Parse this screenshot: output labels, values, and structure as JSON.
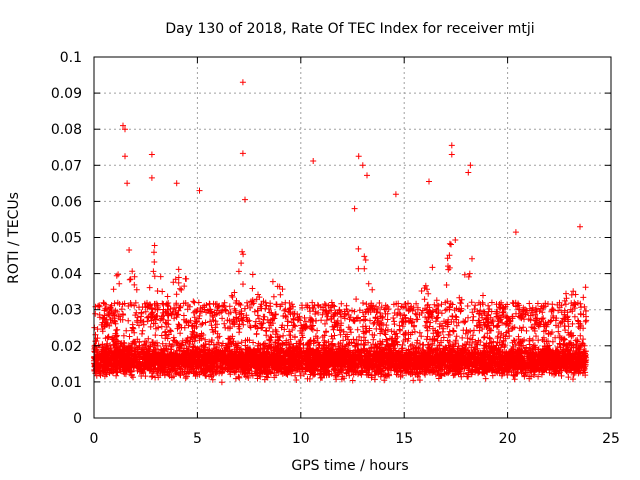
{
  "chart_data": {
    "type": "scatter",
    "title": "Day 130 of 2018, Rate Of TEC Index for receiver mtji",
    "xlabel": "GPS time / hours",
    "ylabel": "ROTI / TECUs",
    "xlim": [
      0,
      25
    ],
    "ylim": [
      0,
      0.1
    ],
    "xticks": [
      0,
      5,
      10,
      15,
      20,
      25
    ],
    "xtick_labels": [
      "0",
      "5",
      "10",
      "15",
      "20",
      "25"
    ],
    "yticks": [
      0,
      0.01,
      0.02,
      0.03,
      0.04,
      0.05,
      0.06,
      0.07,
      0.08,
      0.09,
      0.1
    ],
    "ytick_labels": [
      "0",
      "0.01",
      "0.02",
      "0.03",
      "0.04",
      "0.05",
      "0.06",
      "0.07",
      "0.08",
      "0.09",
      "0.1"
    ],
    "grid": true,
    "marker": "+",
    "color": "#ff0000",
    "series": [
      {
        "name": "ROTI",
        "x_range": [
          0,
          23.8
        ],
        "dense_band": [
          0.005,
          0.03
        ],
        "notable_points": [
          {
            "x": 7.2,
            "y": 0.093
          },
          {
            "x": 1.4,
            "y": 0.081
          },
          {
            "x": 1.5,
            "y": 0.08
          },
          {
            "x": 1.5,
            "y": 0.0725
          },
          {
            "x": 2.8,
            "y": 0.073
          },
          {
            "x": 2.8,
            "y": 0.0665
          },
          {
            "x": 7.2,
            "y": 0.0733
          },
          {
            "x": 10.6,
            "y": 0.0712
          },
          {
            "x": 12.8,
            "y": 0.0725
          },
          {
            "x": 13.0,
            "y": 0.07
          },
          {
            "x": 13.2,
            "y": 0.0672
          },
          {
            "x": 17.3,
            "y": 0.0755
          },
          {
            "x": 17.3,
            "y": 0.073
          },
          {
            "x": 18.2,
            "y": 0.07
          },
          {
            "x": 18.1,
            "y": 0.068
          },
          {
            "x": 16.2,
            "y": 0.0655
          },
          {
            "x": 5.1,
            "y": 0.063
          },
          {
            "x": 14.6,
            "y": 0.062
          },
          {
            "x": 7.3,
            "y": 0.0605
          },
          {
            "x": 4.0,
            "y": 0.065
          },
          {
            "x": 12.6,
            "y": 0.058
          },
          {
            "x": 1.6,
            "y": 0.065
          },
          {
            "x": 20.4,
            "y": 0.0515
          },
          {
            "x": 23.5,
            "y": 0.053
          }
        ]
      }
    ]
  }
}
